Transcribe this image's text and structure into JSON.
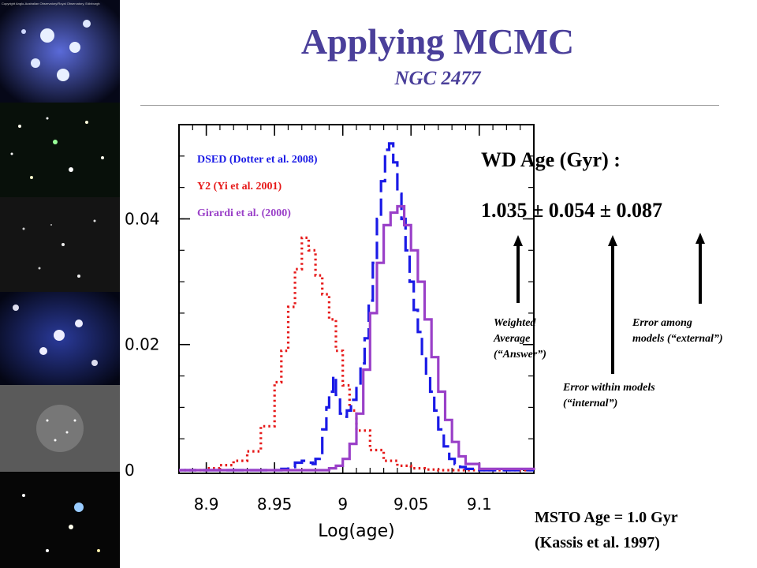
{
  "slide": {
    "title": "Applying MCMC",
    "subtitle": "NGC 2477",
    "credit": "Copyright Anglo-Australian Observatory/Royal Observatory, Edinburgh"
  },
  "result": {
    "wd_age_label": "WD Age (Gyr) :",
    "wd_age_value": "1.035 ± 0.054 ± 0.087",
    "notes": {
      "weighted": [
        "Weighted",
        "Average",
        "(“Answer”)"
      ],
      "internal": [
        "Error within models",
        "(“internal”)"
      ],
      "external": [
        "Error among",
        "models (“external”)"
      ]
    },
    "msto_line1": "MSTO Age = 1.0 Gyr",
    "msto_line2": "(Kassis et al. 1997)"
  },
  "colors": {
    "title": "#4a3f9a",
    "dsed": "#1a1ae6",
    "y2": "#e61a1a",
    "girardi": "#9a40c8"
  },
  "chart_data": {
    "type": "line",
    "xlabel": "Log(age)",
    "ylabel": "",
    "xlim": [
      8.88,
      9.14
    ],
    "ylim": [
      -0.0005,
      0.055
    ],
    "x_ticks": [
      8.9,
      8.95,
      9,
      9.05,
      9.1
    ],
    "x_tick_labels": [
      "8.9",
      "8.95",
      "9",
      "9.05",
      "9.1"
    ],
    "y_ticks": [
      0,
      0.02,
      0.04
    ],
    "y_tick_labels": [
      "0",
      "0.02",
      "0.04"
    ],
    "legend_position": "top-left",
    "series": [
      {
        "name": "DSED (Dotter et al. 2008)",
        "style": "dashed",
        "color": "#1a1ae6",
        "x": [
          8.88,
          8.955,
          8.96,
          8.965,
          8.97,
          8.975,
          8.978,
          8.98,
          8.983,
          8.985,
          8.988,
          8.99,
          8.993,
          8.995,
          8.998,
          9.0,
          9.003,
          9.006,
          9.01,
          9.013,
          9.016,
          9.019,
          9.022,
          9.025,
          9.028,
          9.031,
          9.034,
          9.037,
          9.04,
          9.043,
          9.046,
          9.049,
          9.052,
          9.055,
          9.058,
          9.061,
          9.064,
          9.067,
          9.07,
          9.074,
          9.078,
          9.082,
          9.086,
          9.09,
          9.1,
          9.14
        ],
        "y": [
          0.0,
          0.0002,
          0.0005,
          0.0012,
          0.0015,
          0.0012,
          0.001,
          0.0018,
          0.0025,
          0.0065,
          0.01,
          0.0125,
          0.015,
          0.012,
          0.009,
          0.0085,
          0.0095,
          0.0112,
          0.0135,
          0.017,
          0.021,
          0.027,
          0.033,
          0.04,
          0.046,
          0.051,
          0.052,
          0.049,
          0.044,
          0.04,
          0.035,
          0.03,
          0.0255,
          0.022,
          0.018,
          0.015,
          0.0125,
          0.0095,
          0.0065,
          0.0038,
          0.0018,
          0.001,
          0.0005,
          0.0002,
          0.0,
          0.0
        ]
      },
      {
        "name": "Y2 (Yi et al. 2001)",
        "style": "dotted",
        "color": "#e61a1a",
        "x": [
          8.88,
          8.9,
          8.91,
          8.92,
          8.93,
          8.94,
          8.95,
          8.955,
          8.96,
          8.965,
          8.97,
          8.975,
          8.98,
          8.985,
          8.99,
          8.995,
          9.0,
          9.005,
          9.01,
          9.02,
          9.03,
          9.04,
          9.05,
          9.06,
          9.07,
          9.14
        ],
        "y": [
          0.0,
          0.0003,
          0.0008,
          0.0015,
          0.003,
          0.007,
          0.014,
          0.019,
          0.026,
          0.032,
          0.037,
          0.035,
          0.031,
          0.028,
          0.024,
          0.019,
          0.0135,
          0.0095,
          0.0063,
          0.0032,
          0.0015,
          0.0007,
          0.0003,
          0.0001,
          0.0,
          0.0
        ]
      },
      {
        "name": "Girardi et al. (2000)",
        "style": "solid",
        "color": "#9a40c8",
        "x": [
          8.88,
          8.99,
          8.995,
          9.0,
          9.005,
          9.01,
          9.015,
          9.02,
          9.025,
          9.03,
          9.035,
          9.04,
          9.045,
          9.05,
          9.055,
          9.06,
          9.065,
          9.07,
          9.075,
          9.08,
          9.085,
          9.09,
          9.1,
          9.14
        ],
        "y": [
          0.0,
          0.0003,
          0.0007,
          0.0018,
          0.0042,
          0.009,
          0.016,
          0.025,
          0.033,
          0.039,
          0.041,
          0.042,
          0.039,
          0.035,
          0.03,
          0.024,
          0.018,
          0.0125,
          0.008,
          0.0045,
          0.0022,
          0.001,
          0.0002,
          0.0
        ]
      }
    ]
  }
}
